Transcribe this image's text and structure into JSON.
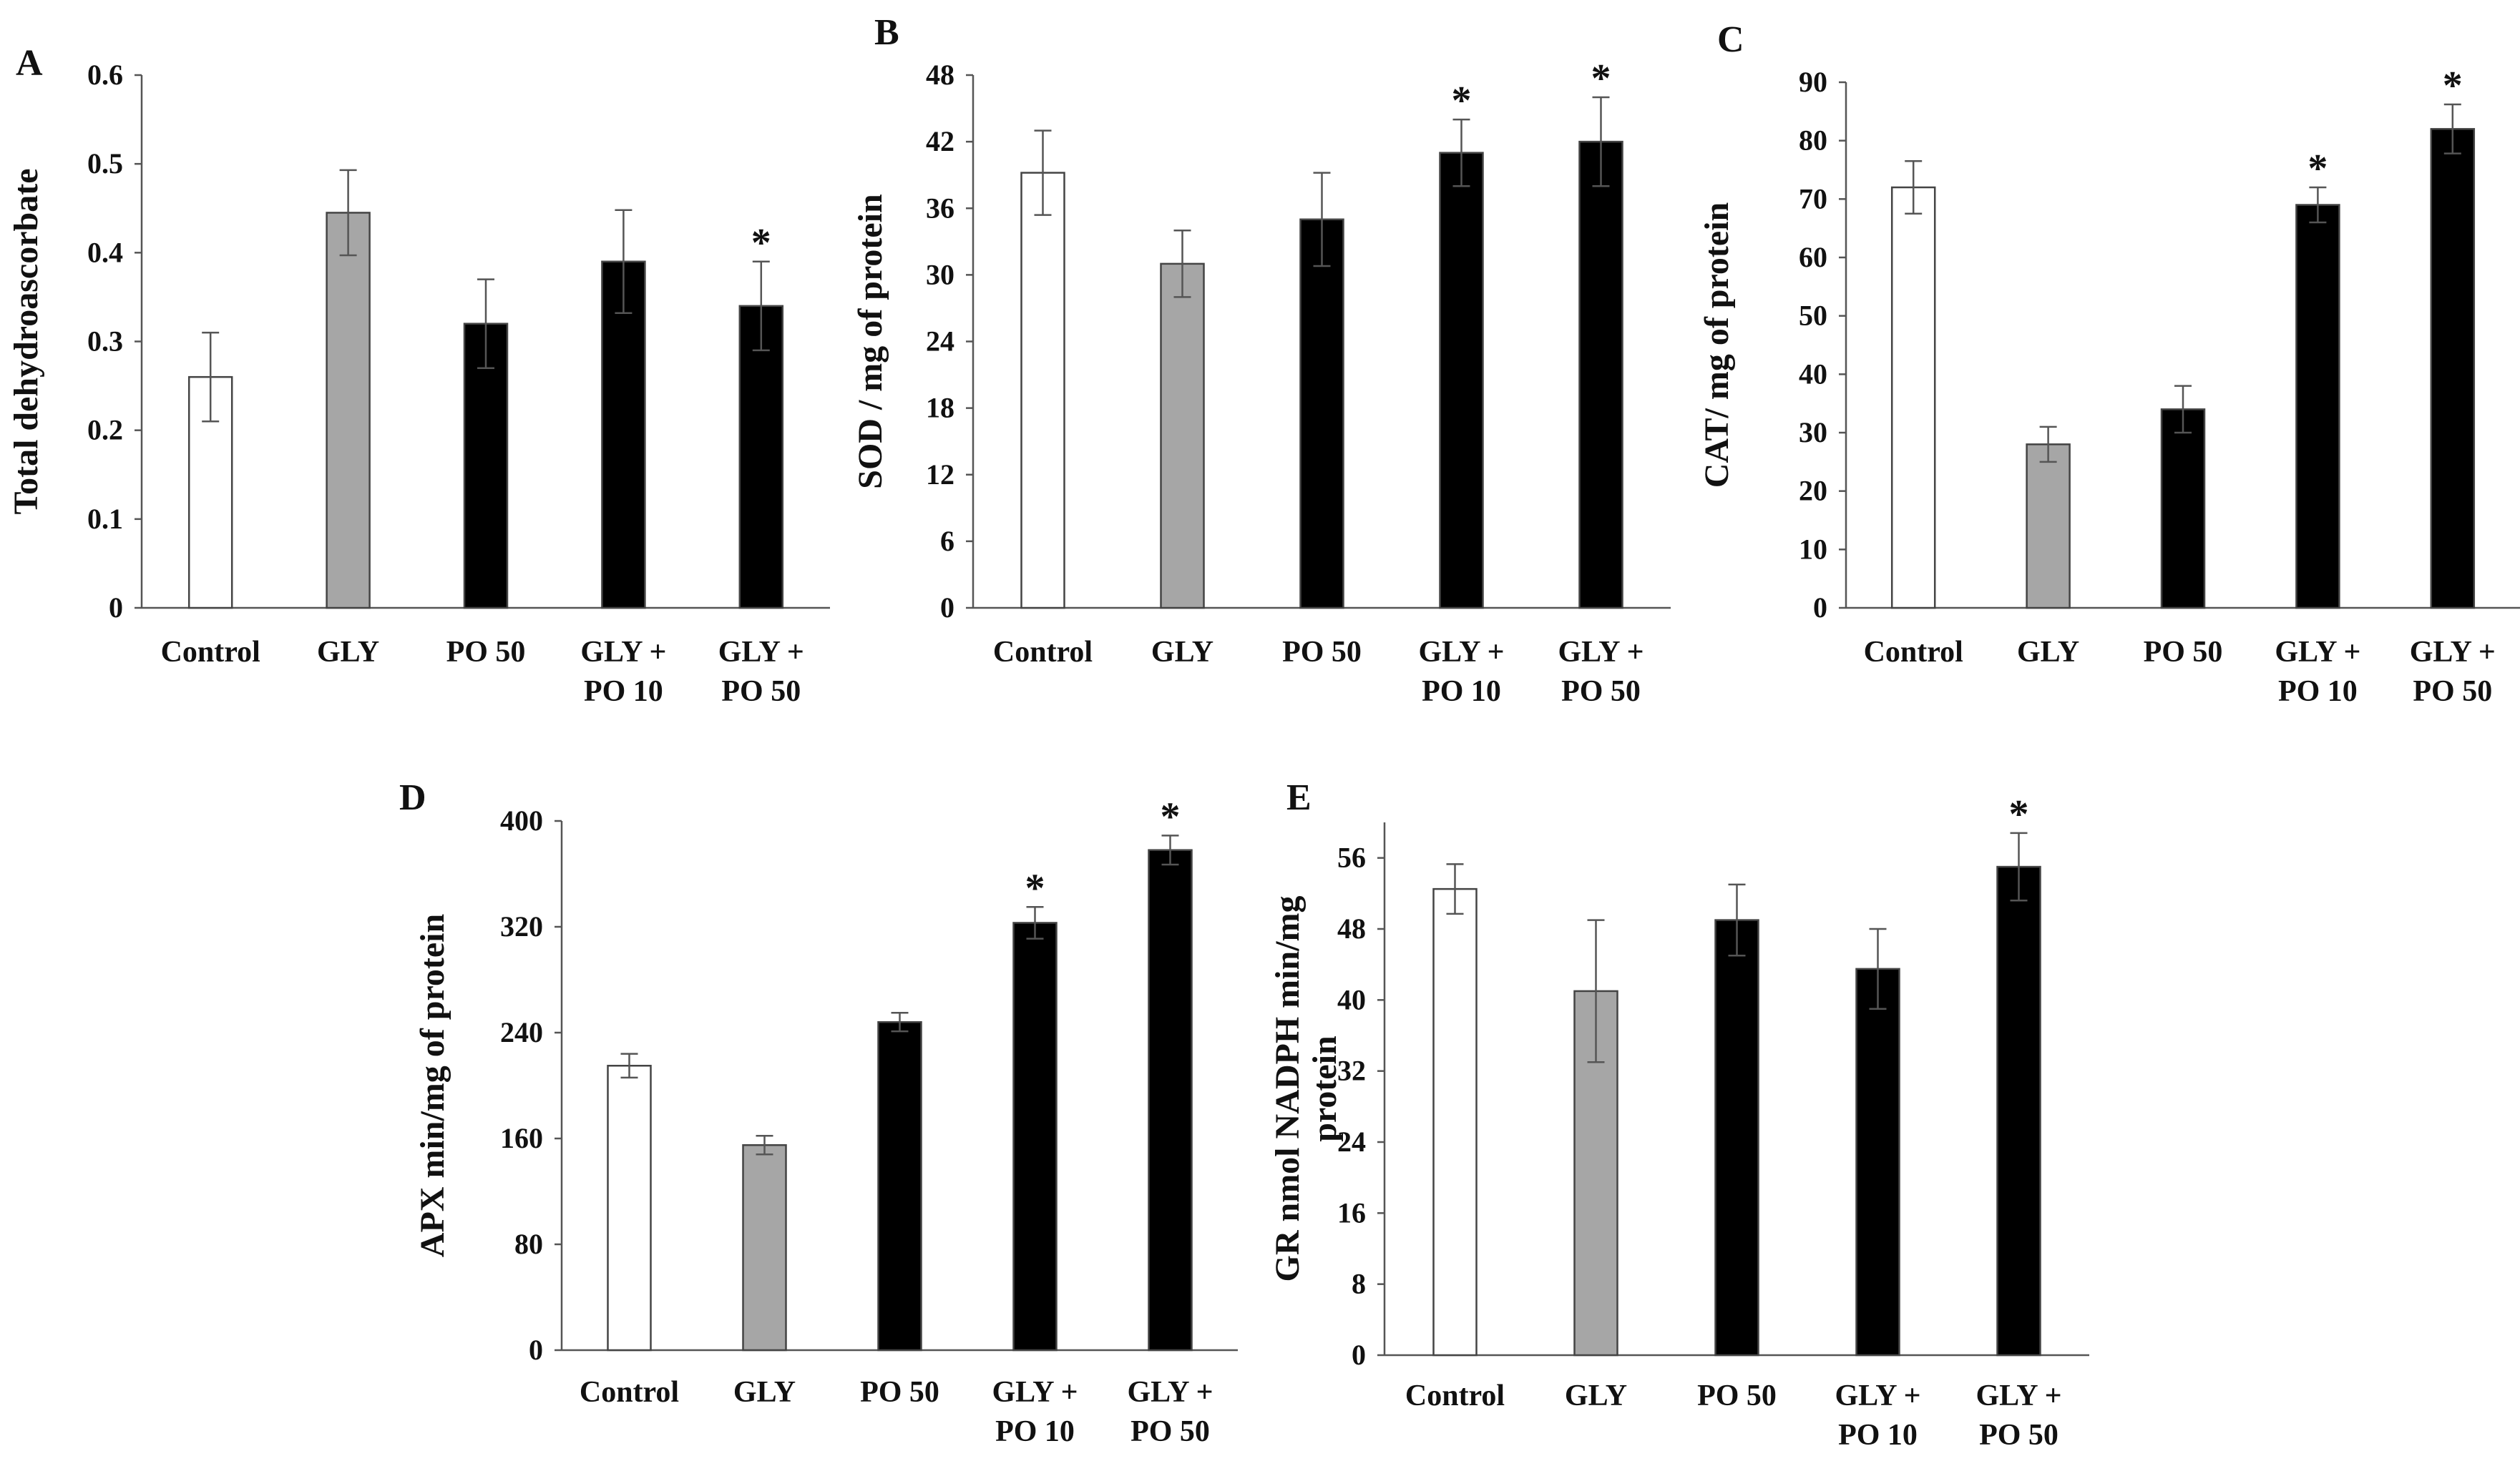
{
  "figure": {
    "panels": [
      {
        "letter": "A",
        "ylabel": [
          "Total dehydroascorbate"
        ],
        "ticks": [
          "0",
          "0.1",
          "0.2",
          "0.3",
          "0.4",
          "0.5",
          "0.6"
        ]
      },
      {
        "letter": "B",
        "ylabel": [
          "SOD / mg of protein"
        ],
        "ticks": [
          "0",
          "6",
          "12",
          "18",
          "24",
          "30",
          "36",
          "42",
          "48"
        ]
      },
      {
        "letter": "C",
        "ylabel": [
          "CAT/ mg of protein"
        ],
        "ticks": [
          "0",
          "10",
          "20",
          "30",
          "40",
          "50",
          "60",
          "70",
          "80",
          "90"
        ]
      },
      {
        "letter": "D",
        "ylabel": [
          "APX min/mg of protein"
        ],
        "ticks": [
          "0",
          "80",
          "160",
          "240",
          "320",
          "400"
        ]
      },
      {
        "letter": "E",
        "ylabel": [
          "GR nmol NADPH min/mg",
          "protein"
        ],
        "ticks": [
          "0",
          "8",
          "16",
          "24",
          "32",
          "40",
          "48",
          "56"
        ]
      }
    ]
  },
  "chart_data": [
    {
      "type": "bar",
      "panel": "A",
      "title": "",
      "xlabel": "",
      "ylabel": "Total dehydroascorbate",
      "ylim": [
        0,
        0.6
      ],
      "categories": [
        [
          "Control"
        ],
        [
          "GLY"
        ],
        [
          "PO 50"
        ],
        [
          "GLY +",
          "PO 10"
        ],
        [
          "GLY +",
          "PO 50"
        ]
      ],
      "values": [
        0.26,
        0.445,
        0.32,
        0.39,
        0.34
      ],
      "errors": [
        0.05,
        0.048,
        0.05,
        0.058,
        0.05
      ],
      "significant": [
        "",
        "",
        "",
        "",
        "*"
      ],
      "bar_colors": [
        "#ffffff",
        "#a6a6a6",
        "#000000",
        "#000000",
        "#000000"
      ],
      "grid": false,
      "legend": "none"
    },
    {
      "type": "bar",
      "panel": "B",
      "title": "",
      "xlabel": "",
      "ylabel": "SOD / mg of protein",
      "ylim": [
        0,
        48
      ],
      "categories": [
        [
          "Control"
        ],
        [
          "GLY"
        ],
        [
          "PO 50"
        ],
        [
          "GLY +",
          "PO 10"
        ],
        [
          "GLY +",
          "PO 50"
        ]
      ],
      "values": [
        39.2,
        31,
        35,
        41,
        42
      ],
      "errors": [
        3.8,
        3,
        4.2,
        3,
        4
      ],
      "significant": [
        "",
        "",
        "",
        "*",
        "*"
      ],
      "bar_colors": [
        "#ffffff",
        "#a6a6a6",
        "#000000",
        "#000000",
        "#000000"
      ],
      "grid": false,
      "legend": "none"
    },
    {
      "type": "bar",
      "panel": "C",
      "title": "",
      "xlabel": "",
      "ylabel": "CAT/ mg of protein",
      "ylim": [
        0,
        90
      ],
      "categories": [
        [
          "Control"
        ],
        [
          "GLY"
        ],
        [
          "PO 50"
        ],
        [
          "GLY +",
          "PO 10"
        ],
        [
          "GLY +",
          "PO 50"
        ]
      ],
      "values": [
        72,
        28,
        34,
        69,
        82
      ],
      "errors": [
        4.5,
        3,
        4,
        3,
        4.2
      ],
      "significant": [
        "",
        "",
        "",
        "*",
        "*"
      ],
      "bar_colors": [
        "#ffffff",
        "#a6a6a6",
        "#000000",
        "#000000",
        "#000000"
      ],
      "grid": false,
      "legend": "none"
    },
    {
      "type": "bar",
      "panel": "D",
      "title": "",
      "xlabel": "",
      "ylabel": "APX min/mg of protein",
      "ylim": [
        0,
        400
      ],
      "categories": [
        [
          "Control"
        ],
        [
          "GLY"
        ],
        [
          "PO 50"
        ],
        [
          "GLY +",
          "PO 10"
        ],
        [
          "GLY +",
          "PO 50"
        ]
      ],
      "values": [
        215,
        155,
        248,
        323,
        378
      ],
      "errors": [
        9,
        7,
        7,
        12,
        11
      ],
      "significant": [
        "",
        "",
        "",
        "*",
        "*"
      ],
      "bar_colors": [
        "#ffffff",
        "#a6a6a6",
        "#000000",
        "#000000",
        "#000000"
      ],
      "grid": false,
      "legend": "none"
    },
    {
      "type": "bar",
      "panel": "E",
      "title": "",
      "xlabel": "",
      "ylabel": "GR nmol NADPH min/mg protein",
      "ylim": [
        0,
        60
      ],
      "categories": [
        [
          "Control"
        ],
        [
          "GLY"
        ],
        [
          "PO 50"
        ],
        [
          "GLY +",
          "PO 10"
        ],
        [
          "GLY +",
          "PO 50"
        ]
      ],
      "values": [
        52.5,
        41,
        49,
        43.5,
        55
      ],
      "errors": [
        2.8,
        8,
        4,
        4.5,
        3.8
      ],
      "significant": [
        "",
        "",
        "",
        "",
        "*"
      ],
      "bar_colors": [
        "#ffffff",
        "#a6a6a6",
        "#000000",
        "#000000",
        "#000000"
      ],
      "grid": false,
      "legend": "none"
    }
  ]
}
